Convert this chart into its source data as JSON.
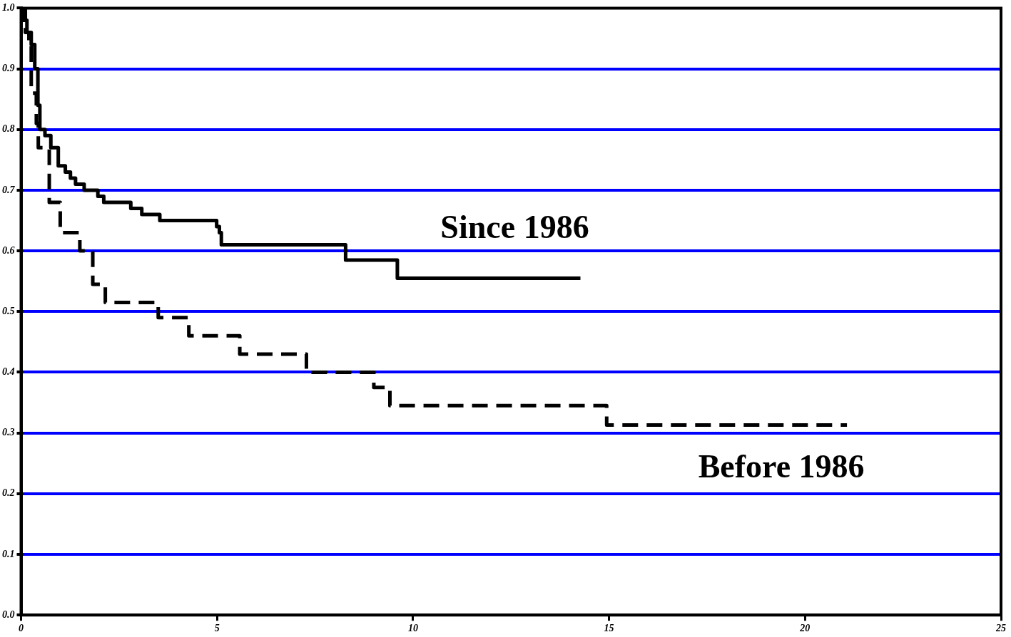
{
  "chart_data": {
    "type": "step",
    "xlim": [
      0,
      25
    ],
    "xticks": [
      0,
      5,
      10,
      15,
      20,
      25
    ],
    "ylim": [
      0,
      1
    ],
    "yticks": [
      {
        "value": 0,
        "label": "0.0"
      },
      0.1,
      0.2,
      0.3,
      0.4,
      0.5,
      0.6,
      0.7,
      0.8,
      0.9,
      {
        "value": 1,
        "label": "1.0"
      }
    ],
    "grid": "y",
    "legend": false,
    "marker": "none",
    "series": [
      {
        "name": "Since 1986",
        "color": "#000000",
        "line_style": "solid",
        "x": [
          0,
          0.05,
          0.15,
          0.26,
          0.35,
          0.43,
          0.48,
          0.61,
          0.76,
          0.95,
          1.13,
          1.26,
          1.39,
          1.61,
          1.96,
          2.11,
          2.8,
          3.08,
          3.54,
          4.99,
          5.06,
          5.11,
          8.28,
          9.6,
          14.27
        ],
        "values": [
          1,
          0.98,
          0.96,
          0.94,
          0.9,
          0.84,
          0.8,
          0.79,
          0.77,
          0.74,
          0.73,
          0.72,
          0.71,
          0.7,
          0.69,
          0.68,
          0.67,
          0.66,
          0.65,
          0.64,
          0.63,
          0.61,
          0.585,
          0.555,
          0.555
        ]
      },
      {
        "name": "Before 1986",
        "color": "#000000",
        "line_style": "dashed",
        "x": [
          0,
          0.11,
          0.2,
          0.26,
          0.39,
          0.44,
          0.72,
          1.0,
          1.5,
          1.83,
          2.15,
          3.5,
          4.28,
          5.58,
          7.28,
          9.0,
          9.41,
          14.94,
          21.07
        ],
        "values": [
          1,
          0.96,
          0.94,
          0.86,
          0.81,
          0.77,
          0.68,
          0.63,
          0.6,
          0.545,
          0.515,
          0.49,
          0.46,
          0.43,
          0.4,
          0.375,
          0.345,
          0.313,
          0.313
        ]
      }
    ]
  }
}
